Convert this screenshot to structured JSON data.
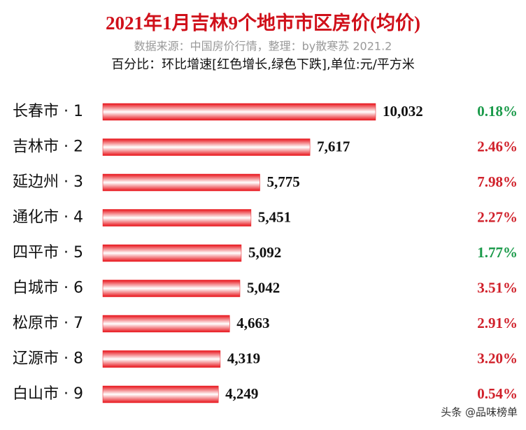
{
  "chart_data": {
    "type": "hbar",
    "title": "2021年1月吉林9个地市市区房价(均价)",
    "subtitle": "数据来源：中国房价行情，整理：by散寒苏  2021.2",
    "note": "百分比：环比增速[红色增长,绿色下跌],单位:元/平方米",
    "categories": [
      "长春市 · 1",
      "吉林市 · 2",
      "延边州 · 3",
      "通化市 · 4",
      "四平市 · 5",
      "白城市 · 6",
      "松原市 · 7",
      "辽源市 · 8",
      "白山市 · 9"
    ],
    "values": [
      10032,
      7617,
      5775,
      5451,
      5092,
      5042,
      4663,
      4319,
      4249
    ],
    "value_labels": [
      "10,032",
      "7,617",
      "5,775",
      "5,451",
      "5,092",
      "5,042",
      "4,663",
      "4,319",
      "4,249"
    ],
    "color": "#e8141b",
    "changes": {
      "values": [
        0.18,
        2.46,
        7.98,
        2.27,
        1.77,
        3.51,
        2.91,
        3.2,
        0.54
      ],
      "value_labels": [
        "0.18%",
        "2.46%",
        "7.98%",
        "2.27%",
        "1.77%",
        "3.51%",
        "2.91%",
        "3.20%",
        "0.54%"
      ],
      "colors": [
        "#1a9a4a",
        "#d0202a",
        "#d0202a",
        "#d0202a",
        "#1a9a4a",
        "#d0202a",
        "#d0202a",
        "#d0202a",
        "#d0202a"
      ]
    },
    "watermark": "头条 @品味榜单"
  }
}
